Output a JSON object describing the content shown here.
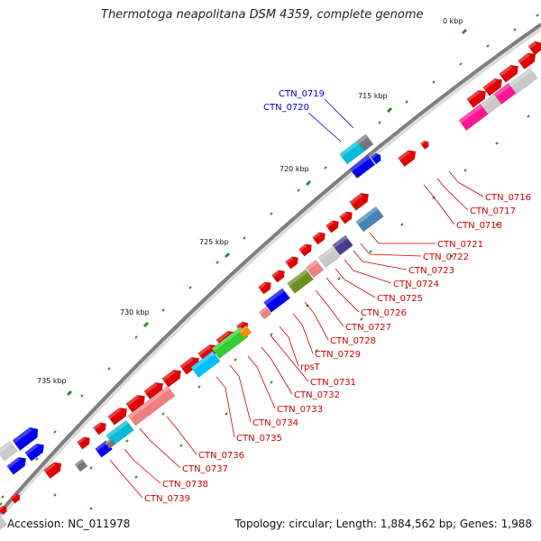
{
  "title": "Thermotoga neapolitana DSM 4359, complete genome",
  "footer": {
    "accession": "Accession: NC_011978",
    "topology": "Topology: circular; Length: 1,884,562 bp; Genes: 1,988"
  },
  "colors": {
    "backbone": "#8c8c8c",
    "tick": "#2e8b2e",
    "label_red": "#cc0000",
    "label_blue": "#0000cc"
  },
  "scale_labels": [
    "0 kbp",
    "715 kbp",
    "720 kbp",
    "725 kbp",
    "730 kbp",
    "735 kbp"
  ],
  "gene_labels": {
    "blue": [
      "CTN_0719",
      "CTN_0720"
    ],
    "red": [
      "CTN_0716",
      "CTN_0717",
      "CTN_0718",
      "CTN_0721",
      "CTN_0722",
      "CTN_0723",
      "CTN_0724",
      "CTN_0725",
      "CTN_0726",
      "CTN_0727",
      "CTN_0728",
      "CTN_0729",
      "rpsT",
      "CTN_0731",
      "CTN_0732",
      "CTN_0733",
      "CTN_0734",
      "CTN_0735",
      "CTN_0736",
      "CTN_0737",
      "CTN_0738",
      "CTN_0739"
    ]
  }
}
